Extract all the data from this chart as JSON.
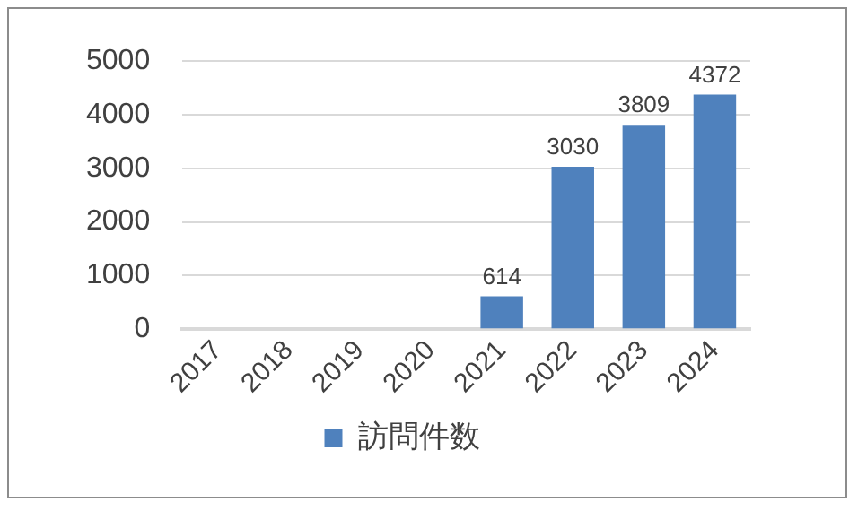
{
  "chart_data": {
    "type": "bar",
    "categories": [
      "2017",
      "2018",
      "2019",
      "2020",
      "2021",
      "2022",
      "2023",
      "2024"
    ],
    "series": [
      {
        "name": "訪問件数",
        "color": "#4f81bd",
        "values": [
          null,
          null,
          null,
          null,
          614,
          3030,
          3809,
          4372
        ]
      }
    ],
    "ylim": [
      0,
      5000
    ],
    "yticks": [
      0,
      1000,
      2000,
      3000,
      4000,
      5000
    ],
    "grid": "y",
    "legend": "bottom",
    "data_labels": true
  }
}
